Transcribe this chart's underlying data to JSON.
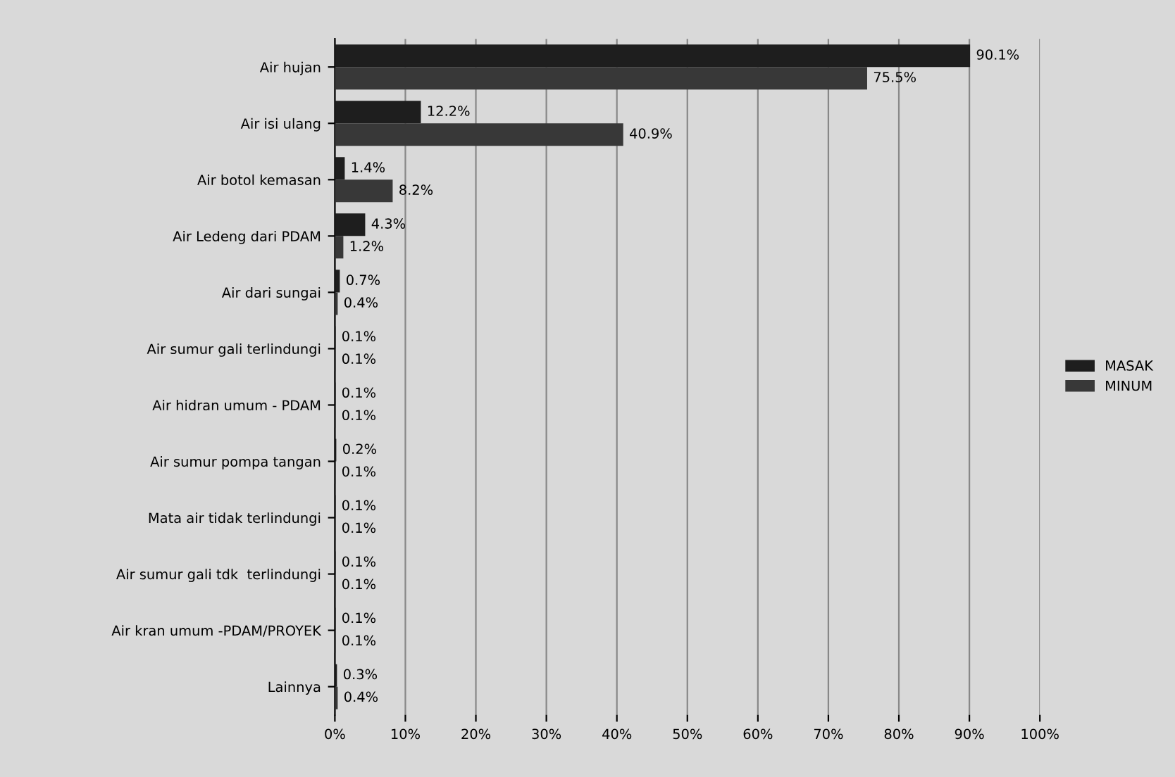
{
  "chart_data": {
    "type": "bar",
    "orientation": "horizontal",
    "categories": [
      "Air hujan",
      "Air isi ulang",
      "Air botol kemasan",
      "Air Ledeng dari PDAM",
      "Air dari sungai",
      "Air sumur gali terlindungi",
      "Air hidran umum - PDAM",
      "Air sumur pompa tangan",
      "Mata air tidak terlindungi",
      "Air sumur gali tdk  terlindungi",
      "Air kran umum -PDAM/PROYEK",
      "Lainnya"
    ],
    "series": [
      {
        "name": "MASAK",
        "color": "#1e1e1e",
        "values": [
          90.1,
          12.2,
          1.4,
          4.3,
          0.7,
          0.1,
          0.1,
          0.2,
          0.1,
          0.1,
          0.1,
          0.3
        ],
        "value_labels": [
          "90.1%",
          "12.2%",
          "1.4%",
          "4.3%",
          "0.7%",
          "0.1%",
          "0.1%",
          "0.2%",
          "0.1%",
          "0.1%",
          "0.1%",
          "0.3%"
        ]
      },
      {
        "name": "MINUM",
        "color": "#383838",
        "values": [
          75.5,
          40.9,
          8.2,
          1.2,
          0.4,
          0.1,
          0.1,
          0.1,
          0.1,
          0.1,
          0.1,
          0.4
        ],
        "value_labels": [
          "75.5%",
          "40.9%",
          "8.2%",
          "1.2%",
          "0.4%",
          "0.1%",
          "0.1%",
          "0.1%",
          "0.1%",
          "0.1%",
          "0.1%",
          "0.4%"
        ]
      }
    ],
    "xlim": [
      0,
      100
    ],
    "xticks": [
      {
        "value": 0,
        "label": "0%"
      },
      {
        "value": 10,
        "label": "10%"
      },
      {
        "value": 20,
        "label": "20%"
      },
      {
        "value": 30,
        "label": "30%"
      },
      {
        "value": 40,
        "label": "40%"
      },
      {
        "value": 50,
        "label": "50%"
      },
      {
        "value": 60,
        "label": "60%"
      },
      {
        "value": 70,
        "label": "70%"
      },
      {
        "value": 80,
        "label": "80%"
      },
      {
        "value": 90,
        "label": "90%"
      },
      {
        "value": 100,
        "label": "100%"
      }
    ],
    "grid": "x",
    "legend": "right"
  }
}
